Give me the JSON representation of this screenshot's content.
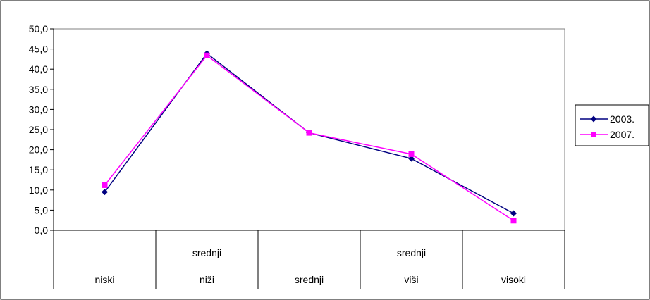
{
  "chart_data": {
    "type": "line",
    "categories": [
      [
        "niski"
      ],
      [
        "srednji",
        "niži"
      ],
      [
        "srednji"
      ],
      [
        "srednji",
        "viši"
      ],
      [
        "visoki"
      ]
    ],
    "y_ticks": [
      "0,0",
      "5,0",
      "10,0",
      "15,0",
      "20,0",
      "25,0",
      "30,0",
      "35,0",
      "40,0",
      "45,0",
      "50,0"
    ],
    "ylim": [
      0,
      50
    ],
    "grid": false,
    "legend_position": "right",
    "series": [
      {
        "name": "2003.",
        "color": "#000080",
        "marker": "diamond",
        "values": [
          9.5,
          43.9,
          24.2,
          17.8,
          4.2
        ]
      },
      {
        "name": "2007.",
        "color": "#ff00ff",
        "marker": "square",
        "values": [
          11.2,
          43.4,
          24.2,
          18.9,
          2.4
        ]
      }
    ]
  }
}
